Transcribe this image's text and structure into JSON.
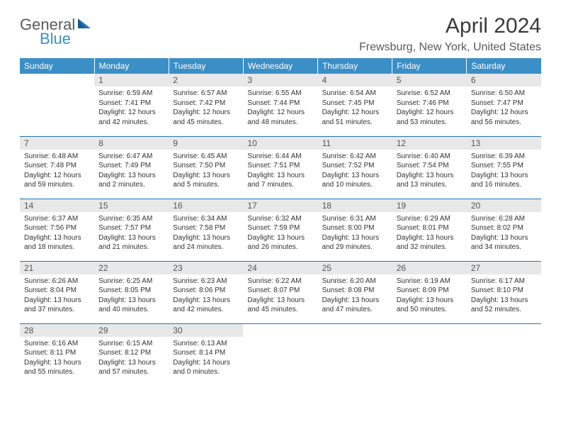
{
  "brand": {
    "line1": "General",
    "line2": "Blue"
  },
  "title": "April 2024",
  "location": "Frewsburg, New York, United States",
  "colors": {
    "header_bg": "#3b8fc7",
    "header_text": "#ffffff",
    "daynum_bg": "#e8e8e8",
    "rule": "#2176b8",
    "text": "#333333"
  },
  "day_headers": [
    "Sunday",
    "Monday",
    "Tuesday",
    "Wednesday",
    "Thursday",
    "Friday",
    "Saturday"
  ],
  "weeks": [
    [
      null,
      {
        "n": "1",
        "sr": "6:59 AM",
        "ss": "7:41 PM",
        "dl": "12 hours and 42 minutes."
      },
      {
        "n": "2",
        "sr": "6:57 AM",
        "ss": "7:42 PM",
        "dl": "12 hours and 45 minutes."
      },
      {
        "n": "3",
        "sr": "6:55 AM",
        "ss": "7:44 PM",
        "dl": "12 hours and 48 minutes."
      },
      {
        "n": "4",
        "sr": "6:54 AM",
        "ss": "7:45 PM",
        "dl": "12 hours and 51 minutes."
      },
      {
        "n": "5",
        "sr": "6:52 AM",
        "ss": "7:46 PM",
        "dl": "12 hours and 53 minutes."
      },
      {
        "n": "6",
        "sr": "6:50 AM",
        "ss": "7:47 PM",
        "dl": "12 hours and 56 minutes."
      }
    ],
    [
      {
        "n": "7",
        "sr": "6:48 AM",
        "ss": "7:48 PM",
        "dl": "12 hours and 59 minutes."
      },
      {
        "n": "8",
        "sr": "6:47 AM",
        "ss": "7:49 PM",
        "dl": "13 hours and 2 minutes."
      },
      {
        "n": "9",
        "sr": "6:45 AM",
        "ss": "7:50 PM",
        "dl": "13 hours and 5 minutes."
      },
      {
        "n": "10",
        "sr": "6:44 AM",
        "ss": "7:51 PM",
        "dl": "13 hours and 7 minutes."
      },
      {
        "n": "11",
        "sr": "6:42 AM",
        "ss": "7:52 PM",
        "dl": "13 hours and 10 minutes."
      },
      {
        "n": "12",
        "sr": "6:40 AM",
        "ss": "7:54 PM",
        "dl": "13 hours and 13 minutes."
      },
      {
        "n": "13",
        "sr": "6:39 AM",
        "ss": "7:55 PM",
        "dl": "13 hours and 16 minutes."
      }
    ],
    [
      {
        "n": "14",
        "sr": "6:37 AM",
        "ss": "7:56 PM",
        "dl": "13 hours and 18 minutes."
      },
      {
        "n": "15",
        "sr": "6:35 AM",
        "ss": "7:57 PM",
        "dl": "13 hours and 21 minutes."
      },
      {
        "n": "16",
        "sr": "6:34 AM",
        "ss": "7:58 PM",
        "dl": "13 hours and 24 minutes."
      },
      {
        "n": "17",
        "sr": "6:32 AM",
        "ss": "7:59 PM",
        "dl": "13 hours and 26 minutes."
      },
      {
        "n": "18",
        "sr": "6:31 AM",
        "ss": "8:00 PM",
        "dl": "13 hours and 29 minutes."
      },
      {
        "n": "19",
        "sr": "6:29 AM",
        "ss": "8:01 PM",
        "dl": "13 hours and 32 minutes."
      },
      {
        "n": "20",
        "sr": "6:28 AM",
        "ss": "8:02 PM",
        "dl": "13 hours and 34 minutes."
      }
    ],
    [
      {
        "n": "21",
        "sr": "6:26 AM",
        "ss": "8:04 PM",
        "dl": "13 hours and 37 minutes."
      },
      {
        "n": "22",
        "sr": "6:25 AM",
        "ss": "8:05 PM",
        "dl": "13 hours and 40 minutes."
      },
      {
        "n": "23",
        "sr": "6:23 AM",
        "ss": "8:06 PM",
        "dl": "13 hours and 42 minutes."
      },
      {
        "n": "24",
        "sr": "6:22 AM",
        "ss": "8:07 PM",
        "dl": "13 hours and 45 minutes."
      },
      {
        "n": "25",
        "sr": "6:20 AM",
        "ss": "8:08 PM",
        "dl": "13 hours and 47 minutes."
      },
      {
        "n": "26",
        "sr": "6:19 AM",
        "ss": "8:09 PM",
        "dl": "13 hours and 50 minutes."
      },
      {
        "n": "27",
        "sr": "6:17 AM",
        "ss": "8:10 PM",
        "dl": "13 hours and 52 minutes."
      }
    ],
    [
      {
        "n": "28",
        "sr": "6:16 AM",
        "ss": "8:11 PM",
        "dl": "13 hours and 55 minutes."
      },
      {
        "n": "29",
        "sr": "6:15 AM",
        "ss": "8:12 PM",
        "dl": "13 hours and 57 minutes."
      },
      {
        "n": "30",
        "sr": "6:13 AM",
        "ss": "8:14 PM",
        "dl": "14 hours and 0 minutes."
      },
      null,
      null,
      null,
      null
    ]
  ],
  "labels": {
    "sunrise": "Sunrise:",
    "sunset": "Sunset:",
    "daylight": "Daylight:"
  }
}
